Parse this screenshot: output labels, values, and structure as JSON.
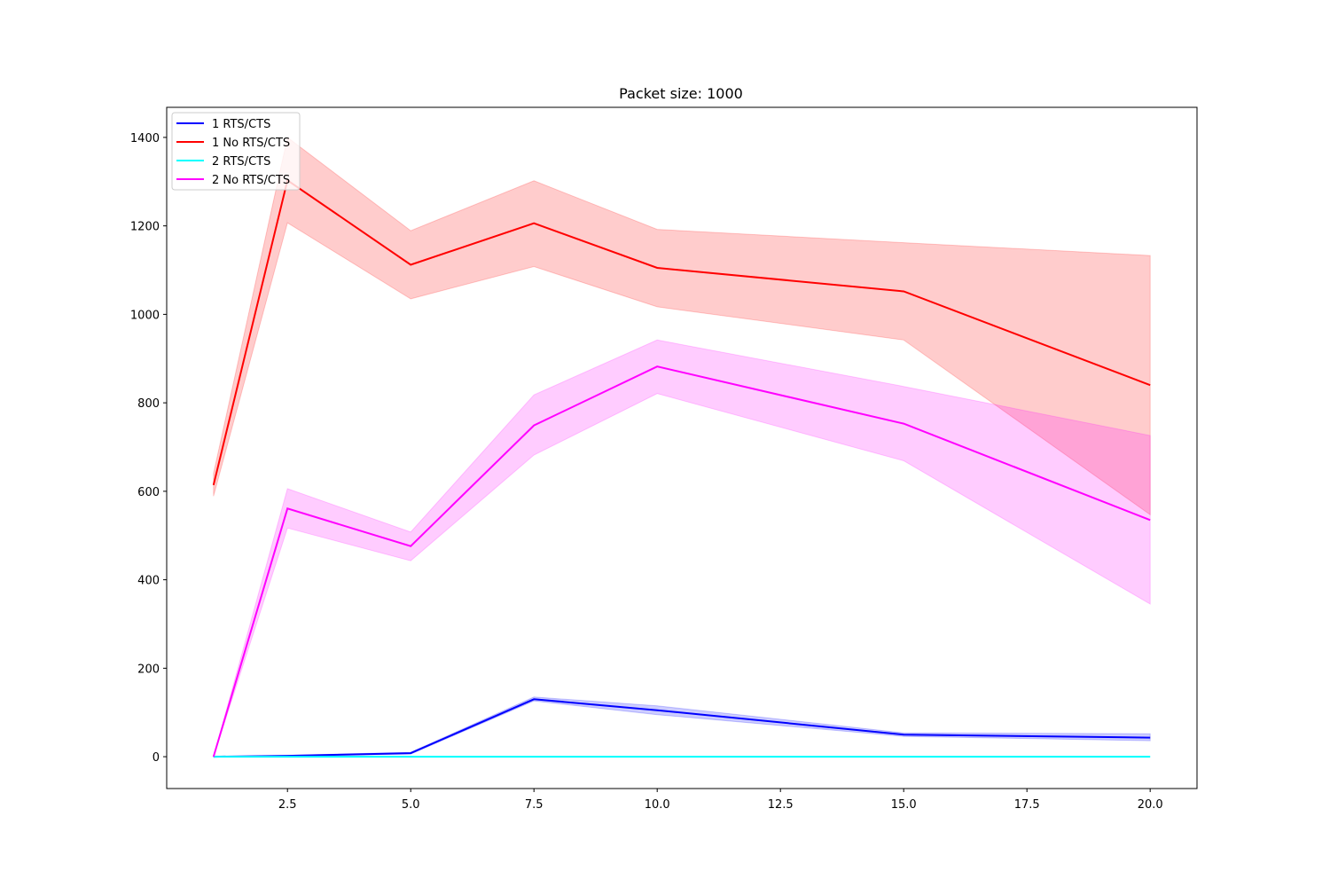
{
  "chart_data": {
    "type": "line",
    "title": "Packet size: 1000",
    "xlabel": "",
    "ylabel": "",
    "xlim": [
      0.05,
      20.95
    ],
    "ylim": [
      -72,
      1468
    ],
    "xticks": [
      2.5,
      5.0,
      7.5,
      10.0,
      12.5,
      15.0,
      17.5,
      20.0
    ],
    "xtick_labels": [
      "2.5",
      "5.0",
      "7.5",
      "10.0",
      "12.5",
      "15.0",
      "17.5",
      "20.0"
    ],
    "yticks": [
      0,
      200,
      400,
      600,
      800,
      1000,
      1200,
      1400
    ],
    "ytick_labels": [
      "0",
      "200",
      "400",
      "600",
      "800",
      "1000",
      "1200",
      "1400"
    ],
    "grid": false,
    "legend_position": "top-left",
    "x": [
      1,
      2.5,
      5,
      7.5,
      10,
      15,
      20
    ],
    "series": [
      {
        "name": "1 RTS/CTS",
        "color": "#0000ff",
        "values": [
          0,
          2,
          8,
          130,
          105,
          50,
          43
        ],
        "band_lower": [
          0,
          1,
          6,
          126,
          95,
          46,
          36
        ],
        "band_upper": [
          0,
          3,
          10,
          135,
          115,
          54,
          52
        ]
      },
      {
        "name": "1 No RTS/CTS",
        "color": "#ff0000",
        "values": [
          614,
          1303,
          1112,
          1206,
          1105,
          1052,
          840
        ],
        "band_lower": [
          589,
          1207,
          1035,
          1108,
          1017,
          942,
          547
        ],
        "band_upper": [
          640,
          1400,
          1189,
          1302,
          1192,
          1162,
          1133
        ]
      },
      {
        "name": "2 RTS/CTS",
        "color": "#00ffff",
        "values": [
          0,
          0,
          0,
          0,
          0,
          0,
          0
        ],
        "band_lower": [
          0,
          0,
          0,
          0,
          0,
          0,
          0
        ],
        "band_upper": [
          0,
          0,
          0,
          0,
          0,
          0,
          0
        ]
      },
      {
        "name": "2 No RTS/CTS",
        "color": "#ff00ff",
        "values": [
          0,
          561,
          476,
          749,
          882,
          753,
          535
        ],
        "band_lower": [
          0,
          517,
          443,
          682,
          821,
          669,
          345
        ],
        "band_upper": [
          0,
          606,
          508,
          818,
          942,
          837,
          726
        ]
      }
    ]
  }
}
